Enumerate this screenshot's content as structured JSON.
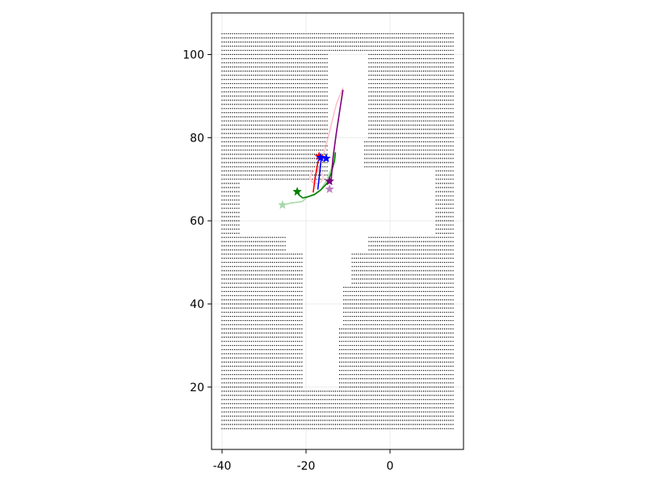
{
  "colors": {
    "background": "#ffffff",
    "grid": "#ebebeb",
    "frame": "#000000",
    "occupancy": "#000000",
    "red": "#ff0000",
    "blue": "#0000ff",
    "green": "#008000",
    "purple": "#800080",
    "pink": "#ffc0cb",
    "light_green": "#a8d8a8",
    "orchid": "#c080c0"
  },
  "chart_data": {
    "type": "scatter",
    "title": "",
    "xlabel": "",
    "ylabel": "",
    "xlim": [
      -42.5,
      17.5
    ],
    "ylim": [
      5,
      110
    ],
    "x_ticks": [
      -40,
      -20,
      0
    ],
    "x_tick_labels": [
      "-40",
      "-20",
      "0"
    ],
    "y_ticks": [
      20,
      40,
      60,
      80,
      100
    ],
    "y_tick_labels": [
      "20",
      "40",
      "60",
      "80",
      "100"
    ],
    "grid": true,
    "legend": "none",
    "occupancy_grid": {
      "x_range": [
        -40,
        15
      ],
      "y_range": [
        10,
        105
      ],
      "x_step": 0.5,
      "y_step": 1,
      "free_regions": [
        {
          "x": [
            -20.5,
            -12.5
          ],
          "y": [
            20,
            35
          ]
        },
        {
          "x": [
            -20.5,
            -11.5
          ],
          "y": [
            35,
            45
          ]
        },
        {
          "x": [
            -20.5,
            -9.5
          ],
          "y": [
            45,
            53
          ]
        },
        {
          "x": [
            -24.5,
            -5.5
          ],
          "y": [
            53,
            57
          ]
        },
        {
          "x": [
            -35.5,
            10.5
          ],
          "y": [
            57,
            69
          ]
        },
        {
          "x": [
            -14.5,
            10.5
          ],
          "y": [
            69,
            72
          ]
        },
        {
          "x": [
            -14.5,
            -6.5
          ],
          "y": [
            72,
            80
          ]
        },
        {
          "x": [
            -14.5,
            -5.5
          ],
          "y": [
            80,
            100
          ]
        }
      ]
    },
    "series": [
      {
        "color": "pink",
        "style": "line",
        "points": [
          [
            -18.5,
            69
          ],
          [
            -17.5,
            71.5
          ],
          [
            -16.2,
            74.5
          ],
          [
            -14.5,
            81
          ],
          [
            -12.8,
            88
          ],
          [
            -11.2,
            92
          ]
        ]
      },
      {
        "color": "pink",
        "style": "circle",
        "points": [
          [
            -17.5,
            70.5
          ]
        ]
      },
      {
        "color": "red",
        "style": "line",
        "points": [
          [
            -18.3,
            66.8
          ],
          [
            -17.8,
            70.5
          ],
          [
            -17.1,
            74.5
          ]
        ]
      },
      {
        "color": "red",
        "style": "star",
        "points": [
          [
            -16.9,
            75.5
          ]
        ]
      },
      {
        "color": "blue",
        "style": "line",
        "points": [
          [
            -17.2,
            67.5
          ],
          [
            -16.8,
            71
          ],
          [
            -16.4,
            74.8
          ]
        ]
      },
      {
        "color": "blue",
        "style": "star",
        "points": [
          [
            -16.5,
            75.2
          ],
          [
            -15.2,
            75
          ]
        ]
      },
      {
        "color": "light_green",
        "style": "line",
        "points": [
          [
            -25.6,
            63.8
          ],
          [
            -23.5,
            64.3
          ],
          [
            -21,
            64.6
          ],
          [
            -19.5,
            65.8
          ],
          [
            -18,
            66.5
          ],
          [
            -16.5,
            67.5
          ],
          [
            -15.2,
            69.5
          ],
          [
            -14,
            72.5
          ],
          [
            -13.1,
            76
          ]
        ]
      },
      {
        "color": "light_green",
        "style": "star",
        "points": [
          [
            -25.6,
            63.8
          ]
        ]
      },
      {
        "color": "green",
        "style": "line",
        "points": [
          [
            -21.9,
            66.4
          ],
          [
            -20.8,
            65.5
          ],
          [
            -19.5,
            65.8
          ],
          [
            -18,
            66.3
          ],
          [
            -16.5,
            67.4
          ],
          [
            -15,
            69
          ],
          [
            -14,
            71.5
          ],
          [
            -13.2,
            74.5
          ],
          [
            -13,
            76.5
          ]
        ]
      },
      {
        "color": "green",
        "style": "star",
        "points": [
          [
            -22.1,
            67
          ]
        ]
      },
      {
        "color": "orchid",
        "style": "star",
        "points": [
          [
            -14.4,
            67.6
          ]
        ]
      },
      {
        "color": "purple",
        "style": "line",
        "points": [
          [
            -14.1,
            68.8
          ],
          [
            -13.6,
            75
          ],
          [
            -12.8,
            81
          ],
          [
            -11.9,
            87
          ],
          [
            -11.2,
            91.5
          ]
        ]
      },
      {
        "color": "purple",
        "style": "star",
        "points": [
          [
            -14.4,
            69.5
          ]
        ]
      }
    ]
  }
}
